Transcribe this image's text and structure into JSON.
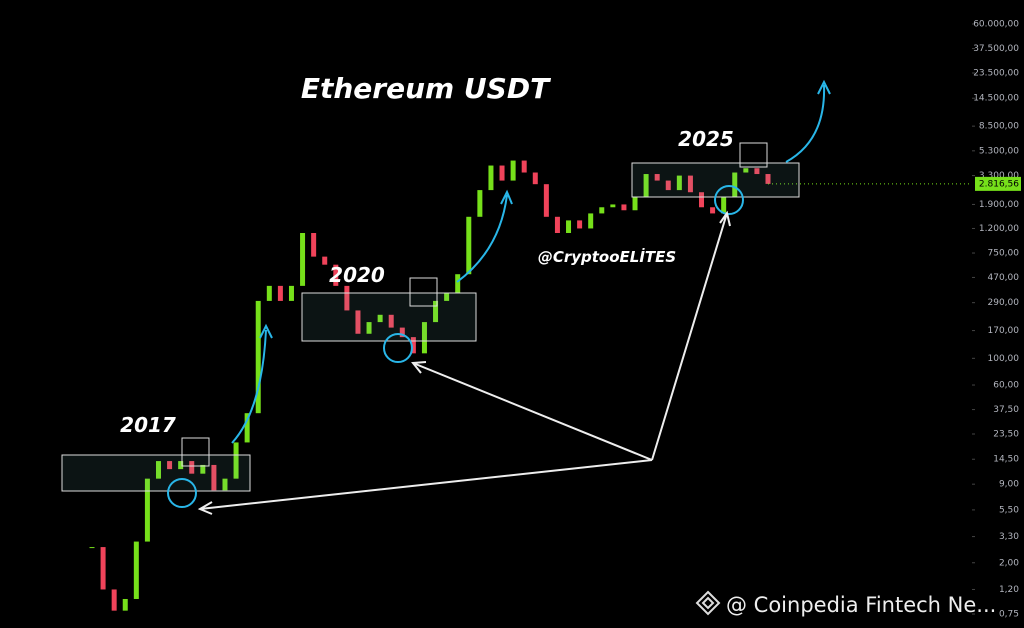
{
  "chart_data": {
    "type": "candlestick",
    "title": "Ethereum USDT",
    "annotations": [
      "2017",
      "2020",
      "2025",
      "@CryptooELİTES"
    ],
    "watermark": "@ Coinpedia Fintech Ne...",
    "log_scale": true,
    "up_color": "#76e01a",
    "down_color": "#f0435a",
    "values": [
      2.7,
      1.2,
      0.8,
      1.0,
      3.0,
      10,
      14,
      12,
      14,
      11,
      13,
      8,
      10,
      20,
      35,
      300,
      400,
      300,
      400,
      1100,
      700,
      600,
      400,
      250,
      160,
      200,
      230,
      180,
      150,
      110,
      200,
      300,
      350,
      500,
      1500,
      2500,
      4000,
      3000,
      4400,
      3500,
      2800,
      1500,
      1100,
      1400,
      1200,
      1600,
      1800,
      1900,
      1700,
      2200,
      3400,
      3000,
      2500,
      3300,
      2400,
      1800,
      1600,
      2200,
      3500,
      3800,
      3400,
      2816.56
    ],
    "last_price": {
      "value": 2816.56,
      "label": "2.816,56"
    },
    "ylim": [
      0.574,
      95000
    ],
    "yticks": [
      {
        "value": 0.75,
        "label": "0,75"
      },
      {
        "value": 1.2,
        "label": "1,20"
      },
      {
        "value": 2,
        "label": "2,00"
      },
      {
        "value": 3.3,
        "label": "3,30"
      },
      {
        "value": 5.5,
        "label": "5,50"
      },
      {
        "value": 9,
        "label": "9,00"
      },
      {
        "value": 14.5,
        "label": "14,50"
      },
      {
        "value": 23.5,
        "label": "23,50"
      },
      {
        "value": 37.5,
        "label": "37,50"
      },
      {
        "value": 60,
        "label": "60,00"
      },
      {
        "value": 100,
        "label": "100,00"
      },
      {
        "value": 170,
        "label": "170,00"
      },
      {
        "value": 290,
        "label": "290,00"
      },
      {
        "value": 470,
        "label": "470,00"
      },
      {
        "value": 750,
        "label": "750,00"
      },
      {
        "value": 1200,
        "label": "1.200,00"
      },
      {
        "value": 1900,
        "label": "1.900,00"
      },
      {
        "value": 3300,
        "label": "3.300,00"
      },
      {
        "value": 5300,
        "label": "5.300,00"
      },
      {
        "value": 8500,
        "label": "8.500,00"
      },
      {
        "value": 14500,
        "label": "14.500,00"
      },
      {
        "value": 23500,
        "label": "23.500,00"
      },
      {
        "value": 37500,
        "label": "37.500,00"
      },
      {
        "value": 60000,
        "label": "60.000,00"
      }
    ]
  }
}
